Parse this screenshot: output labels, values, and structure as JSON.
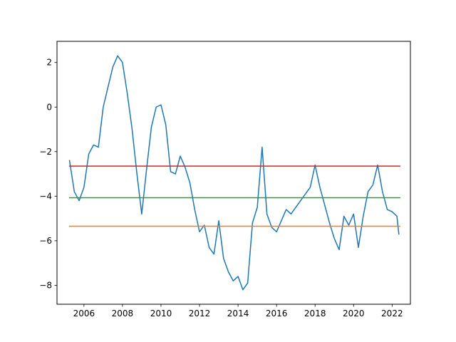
{
  "chart_data": {
    "type": "line",
    "title": "",
    "xlabel": "",
    "ylabel": "",
    "xlim": [
      2004.6,
      2022.95
    ],
    "ylim": [
      -8.85,
      2.95
    ],
    "grid": false,
    "legend": "none",
    "x_ticks": [
      2006,
      2008,
      2010,
      2012,
      2014,
      2016,
      2018,
      2020,
      2022
    ],
    "x_tick_labels": [
      "2006",
      "2008",
      "2010",
      "2012",
      "2014",
      "2016",
      "2018",
      "2020",
      "2022"
    ],
    "y_ticks": [
      2,
      0,
      -2,
      -4,
      -6,
      -8
    ],
    "y_tick_labels": [
      "2",
      "0",
      "−2",
      "−4",
      "−6",
      "−8"
    ],
    "series": [
      {
        "color": "#1f77b4",
        "x": [
          2005.25,
          2005.5,
          2005.75,
          2006.0,
          2006.25,
          2006.5,
          2006.75,
          2007.0,
          2007.25,
          2007.5,
          2007.75,
          2008.0,
          2008.25,
          2008.5,
          2008.75,
          2009.0,
          2009.25,
          2009.5,
          2009.75,
          2010.0,
          2010.25,
          2010.5,
          2010.75,
          2011.0,
          2011.25,
          2011.5,
          2011.75,
          2012.0,
          2012.25,
          2012.5,
          2012.75,
          2013.0,
          2013.25,
          2013.5,
          2013.75,
          2014.0,
          2014.25,
          2014.5,
          2014.75,
          2015.0,
          2015.25,
          2015.5,
          2015.75,
          2016.0,
          2016.25,
          2016.5,
          2016.75,
          2017.0,
          2017.25,
          2017.5,
          2017.75,
          2018.0,
          2018.25,
          2018.5,
          2018.75,
          2019.0,
          2019.25,
          2019.5,
          2019.75,
          2020.0,
          2020.25,
          2020.5,
          2020.75,
          2021.0,
          2021.25,
          2021.5,
          2021.75,
          2022.0,
          2022.25,
          2022.35
        ],
        "y": [
          -2.4,
          -3.8,
          -4.2,
          -3.6,
          -2.1,
          -1.7,
          -1.8,
          0.0,
          0.9,
          1.8,
          2.3,
          2.0,
          0.6,
          -1.0,
          -3.0,
          -4.8,
          -2.8,
          -0.9,
          0.0,
          0.1,
          -0.8,
          -2.9,
          -3.0,
          -2.2,
          -2.7,
          -3.4,
          -4.6,
          -5.6,
          -5.3,
          -6.3,
          -6.6,
          -5.1,
          -6.8,
          -7.4,
          -7.8,
          -7.6,
          -8.2,
          -7.9,
          -5.2,
          -4.5,
          -1.8,
          -4.8,
          -5.4,
          -5.6,
          -5.1,
          -4.6,
          -4.8,
          -4.5,
          -4.2,
          -3.9,
          -3.6,
          -2.6,
          -3.6,
          -4.4,
          -5.2,
          -5.9,
          -6.4,
          -4.9,
          -5.3,
          -4.8,
          -6.3,
          -4.9,
          -3.8,
          -3.5,
          -2.6,
          -3.8,
          -4.6,
          -4.7,
          -4.9,
          -5.7
        ]
      },
      {
        "color": "#d62728",
        "x": [
          2005.25,
          2022.4
        ],
        "y": [
          -2.65,
          -2.65
        ]
      },
      {
        "color": "#2ca02c",
        "x": [
          2005.25,
          2022.4
        ],
        "y": [
          -4.07,
          -4.07
        ]
      },
      {
        "color": "#ff7f0e",
        "x": [
          2005.25,
          2022.4
        ],
        "y": [
          -5.35,
          -5.35
        ]
      }
    ]
  }
}
